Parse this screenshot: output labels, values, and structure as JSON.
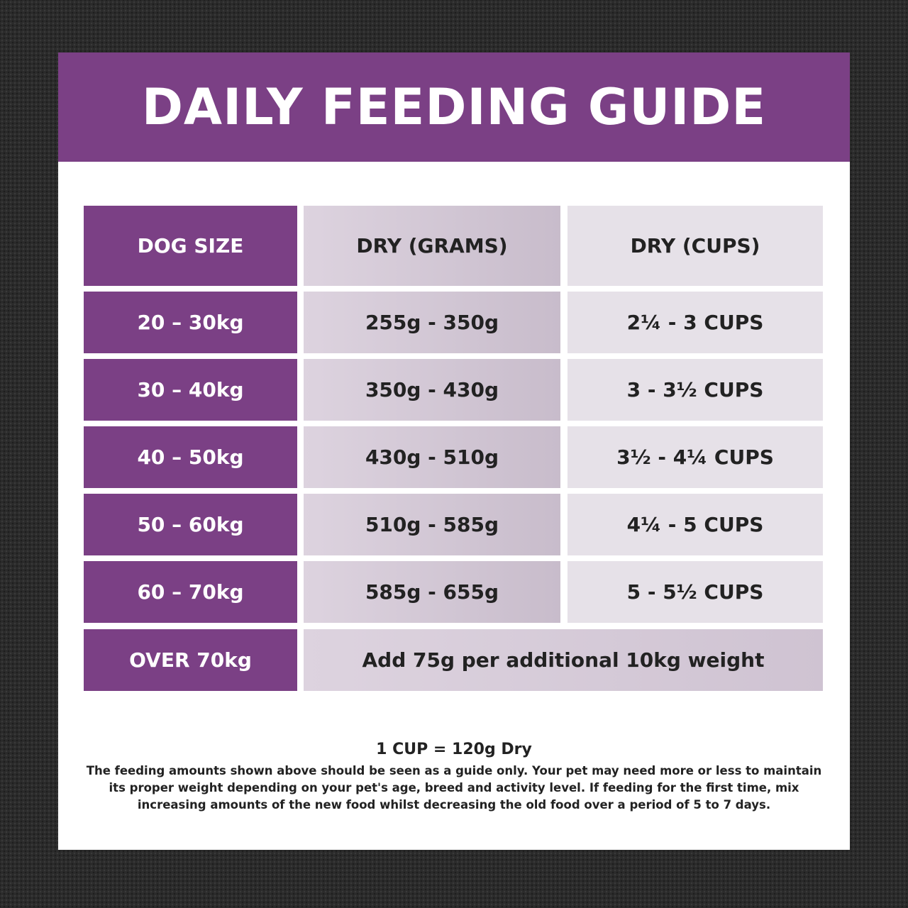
{
  "title": "DAILY FEEDING GUIDE",
  "table": {
    "headers": [
      "DOG SIZE",
      "DRY (GRAMS)",
      "DRY (CUPS)"
    ],
    "rows": [
      [
        "20 – 30kg",
        "255g - 350g",
        "2¼ - 3 CUPS"
      ],
      [
        "30 – 40kg",
        "350g - 430g",
        "3 - 3½ CUPS"
      ],
      [
        "40 – 50kg",
        "430g - 510g",
        "3½ - 4¼ CUPS"
      ],
      [
        "50 – 60kg",
        "510g - 585g",
        "4¼ - 5 CUPS"
      ],
      [
        "60 – 70kg",
        "585g - 655g",
        "5 - 5½ CUPS"
      ]
    ],
    "last_row": {
      "size": "OVER 70kg",
      "note": "Add 75g per additional 10kg weight"
    }
  },
  "footer": {
    "conversion": "1 CUP = 120g Dry",
    "disclaimer": "The feeding amounts shown above should be seen as a guide only. Your pet may need more or less to maintain its proper weight depending on your pet's age, breed and activity level. If feeding for the first time, mix increasing amounts of the new food whilst decreasing the old food over a period of 5 to 7 days."
  },
  "colors": {
    "brand_purple": "#7b4085",
    "grams_column": "#c8bccb",
    "cups_column": "#e6e1e8"
  }
}
